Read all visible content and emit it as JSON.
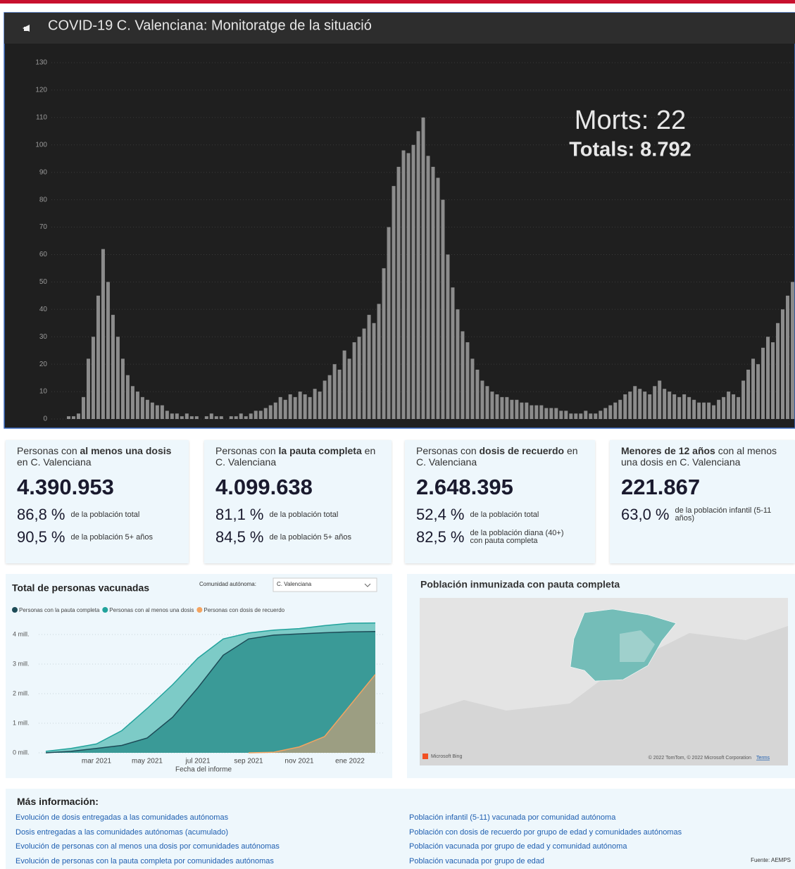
{
  "header": {
    "title": "COVID-19 C. Valenciana: Monitoratge de la situació"
  },
  "chart_data": [
    {
      "type": "bar",
      "annotations": [
        "Morts: 22",
        "Totals: 8.792"
      ],
      "color": "#8c8c8c",
      "grid": true,
      "ylim": [
        0,
        130
      ],
      "yticks": [
        0,
        10,
        20,
        30,
        40,
        50,
        60,
        70,
        80,
        90,
        100,
        110,
        120,
        130
      ],
      "values": [
        0,
        0,
        1,
        1,
        2,
        8,
        22,
        30,
        45,
        62,
        50,
        38,
        30,
        22,
        16,
        12,
        10,
        8,
        7,
        6,
        5,
        5,
        3,
        2,
        2,
        1,
        2,
        1,
        1,
        0,
        1,
        2,
        1,
        1,
        0,
        1,
        1,
        2,
        1,
        2,
        3,
        3,
        4,
        5,
        6,
        8,
        7,
        9,
        8,
        10,
        9,
        8,
        11,
        10,
        14,
        16,
        20,
        18,
        25,
        22,
        28,
        30,
        33,
        38,
        35,
        42,
        55,
        70,
        85,
        92,
        98,
        97,
        100,
        105,
        110,
        96,
        92,
        88,
        80,
        60,
        48,
        40,
        32,
        28,
        22,
        18,
        14,
        12,
        10,
        9,
        8,
        8,
        7,
        7,
        6,
        6,
        5,
        5,
        5,
        4,
        4,
        4,
        3,
        3,
        2,
        2,
        2,
        3,
        2,
        2,
        3,
        4,
        5,
        6,
        7,
        9,
        10,
        12,
        11,
        10,
        9,
        12,
        14,
        11,
        10,
        9,
        8,
        9,
        8,
        7,
        6,
        6,
        6,
        5,
        7,
        8,
        10,
        9,
        8,
        14,
        18,
        22,
        20,
        26,
        30,
        28,
        35,
        40,
        45,
        50
      ]
    },
    {
      "type": "area",
      "title": "Total de personas vacunadas",
      "x_label": "Fecha del informe",
      "grid": true,
      "filter": {
        "label": "Comunidad autónoma:",
        "value": "C. Valenciana"
      },
      "x": [
        "2021-01",
        "2021-02",
        "2021-03",
        "2021-04",
        "2021-05",
        "2021-06",
        "2021-07",
        "2021-08",
        "2021-09",
        "2021-10",
        "2021-11",
        "2021-12",
        "2022-01",
        "2022-02"
      ],
      "xlim": [
        "2021-01",
        "2022-02"
      ],
      "xticks": [
        {
          "value": "2021-03",
          "label": "mar 2021"
        },
        {
          "value": "2021-05",
          "label": "may 2021"
        },
        {
          "value": "2021-07",
          "label": "jul 2021"
        },
        {
          "value": "2021-09",
          "label": "sep 2021"
        },
        {
          "value": "2021-11",
          "label": "nov 2021"
        },
        {
          "value": "2022-01",
          "label": "ene 2022"
        }
      ],
      "ylim": [
        0,
        4.5
      ],
      "yticks": [
        {
          "value": 0,
          "label": "0 mill."
        },
        {
          "value": 1,
          "label": "1 mill."
        },
        {
          "value": 2,
          "label": "2 mill."
        },
        {
          "value": 3,
          "label": "3 mill."
        },
        {
          "value": 4,
          "label": "4 mill."
        }
      ],
      "series": [
        {
          "name": "Personas con la pauta completa",
          "color": "#1d4b57",
          "fill": "#3a9a97",
          "values": [
            0,
            0.05,
            0.15,
            0.25,
            0.5,
            1.2,
            2.2,
            3.3,
            3.85,
            3.98,
            4.02,
            4.06,
            4.09,
            4.1
          ]
        },
        {
          "name": "Personas con al menos una dosis",
          "color": "#22a39c",
          "fill": "#7dcbc7",
          "values": [
            0.05,
            0.15,
            0.3,
            0.75,
            1.5,
            2.3,
            3.2,
            3.85,
            4.05,
            4.15,
            4.2,
            4.3,
            4.38,
            4.39
          ]
        },
        {
          "name": "Personas con dosis de recuerdo",
          "color": "#f4a460",
          "fill": "#a79f80",
          "values": [
            null,
            null,
            null,
            null,
            null,
            null,
            null,
            null,
            0,
            0.02,
            0.2,
            0.55,
            1.6,
            2.65
          ]
        }
      ]
    }
  ],
  "kpis": [
    {
      "title": [
        {
          "text": "Personas con",
          "bold": false
        },
        {
          "text": "al menos una dosis",
          "bold": true
        },
        {
          "text": "en C. Valenciana",
          "bold": false
        }
      ],
      "value": "4.390.953",
      "stats": [
        {
          "pct": "86,8 %",
          "note": "de la población total"
        },
        {
          "pct": "90,5 %",
          "note": "de la población 5+ años"
        }
      ]
    },
    {
      "title": [
        {
          "text": "Personas con",
          "bold": false
        },
        {
          "text": "la pauta completa",
          "bold": true
        },
        {
          "text": "en C. Valenciana",
          "bold": false
        }
      ],
      "value": "4.099.638",
      "stats": [
        {
          "pct": "81,1 %",
          "note": "de la población total"
        },
        {
          "pct": "84,5 %",
          "note": "de la población 5+ años"
        }
      ]
    },
    {
      "title": [
        {
          "text": "Personas con",
          "bold": false
        },
        {
          "text": "dosis de recuerdo",
          "bold": true
        },
        {
          "text": "en C. Valenciana",
          "bold": false
        }
      ],
      "value": "2.648.395",
      "stats": [
        {
          "pct": "52,4 %",
          "note": "de la población total"
        },
        {
          "pct": "82,5 %",
          "note": "de la población diana (40+) con pauta completa"
        }
      ]
    },
    {
      "title": [
        {
          "text": "Menores de 12 años",
          "bold": true
        },
        {
          "text": "con al menos una dosis en C. Valenciana",
          "bold": false
        }
      ],
      "value": "221.867",
      "stats": [
        {
          "pct": "63,0 %",
          "note": "de la población infantil (5-11 años)"
        }
      ]
    }
  ],
  "map": {
    "title": "Población inmunizada con pauta completa",
    "logo": "Microsoft Bing",
    "credits": "© 2022 TomTom, © 2022 Microsoft Corporation",
    "terms": "Terms"
  },
  "links": {
    "title": "Más información:",
    "left": [
      "Evolución de dosis entregadas a las comunidades autónomas",
      "Dosis entregadas a las comunidades autónomas (acumulado)",
      "Evolución de personas con al menos una dosis por comunidades autónomas",
      "Evolución de personas con la pauta completa por comunidades autónomas"
    ],
    "right": [
      "Población infantil (5-11) vacunada por comunidad autónoma",
      "Población con dosis de recuerdo por grupo de edad y comunidades autónomas",
      "Población vacunada por grupo de edad y comunidad autónoma",
      "Población vacunada por grupo de edad"
    ],
    "source": "Fuente: AEMPS"
  }
}
